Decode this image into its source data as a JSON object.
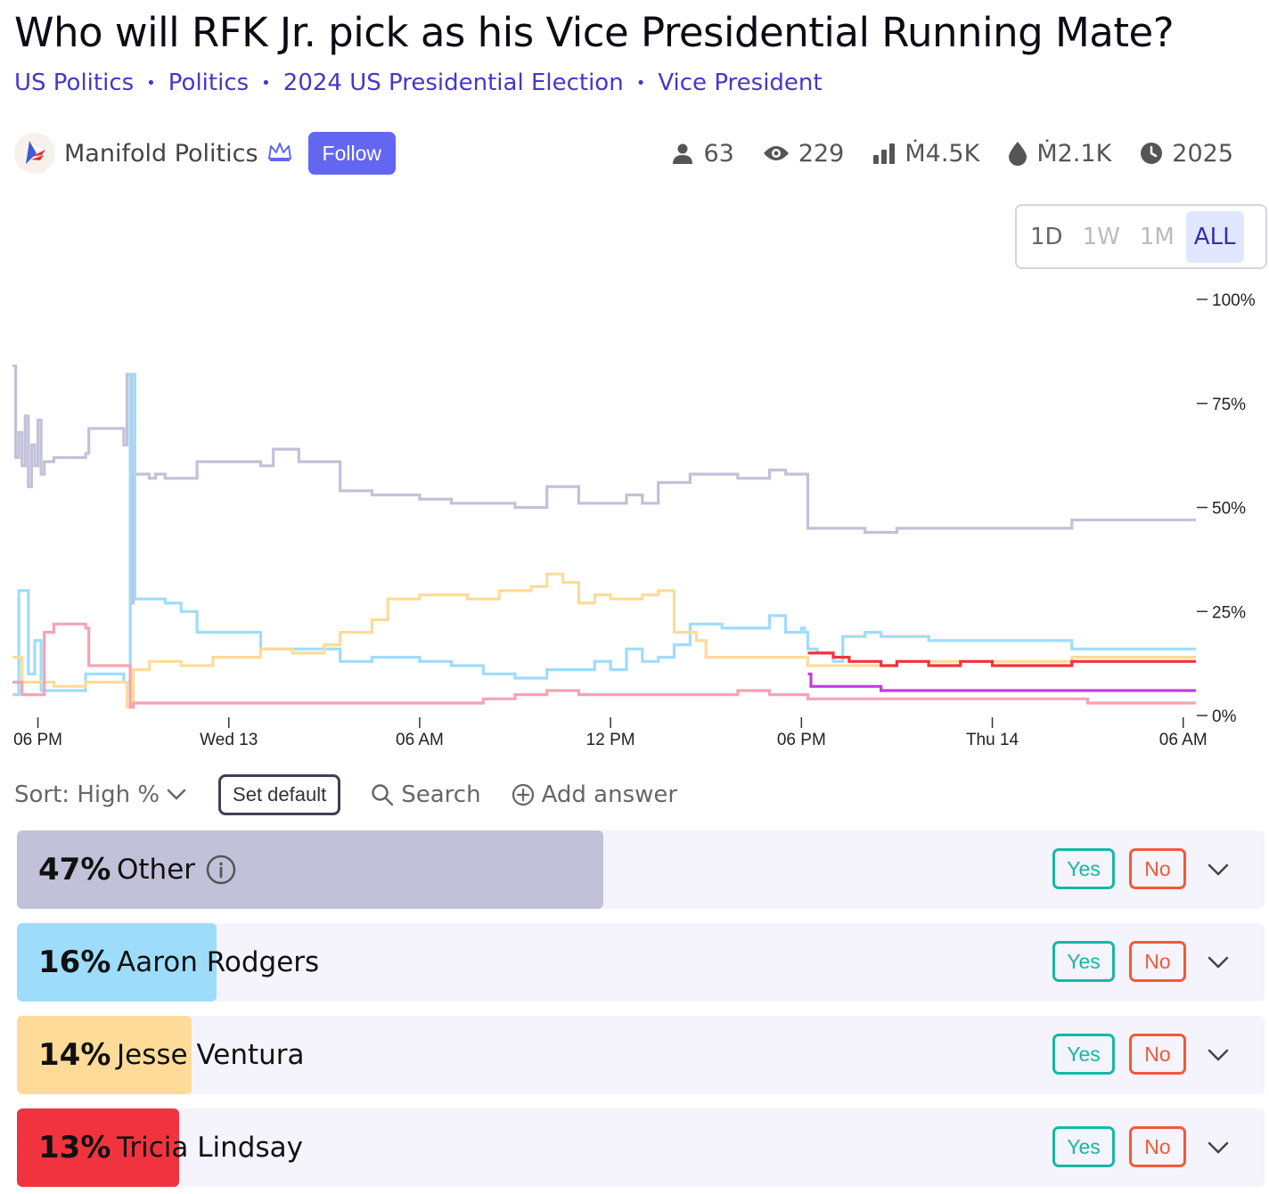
{
  "page": {
    "title": "Who will RFK Jr. pick as his Vice Presidential Running Mate?",
    "breadcrumbs": [
      "US Politics",
      "Politics",
      "2024 US Presidential Election",
      "Vice President"
    ],
    "creator": {
      "name": "Manifold Politics",
      "follow_label": "Follow"
    },
    "stats": {
      "traders": "63",
      "views": "229",
      "volume": "Ṁ4.5K",
      "liquidity": "Ṁ2.1K",
      "close": "2025"
    },
    "range_buttons": [
      "1D",
      "1W",
      "1M",
      "ALL"
    ],
    "active_range": "ALL"
  },
  "toolbar": {
    "sort_label": "Sort: High %",
    "set_default_label": "Set default",
    "search_label": "Search",
    "add_answer_label": "Add answer"
  },
  "answers": [
    {
      "pct": "47%",
      "name": "Other",
      "yes": "Yes",
      "no": "No",
      "value": 0.47,
      "color": "#c3c1d9",
      "info_icon": true
    },
    {
      "pct": "16%",
      "name": "Aaron Rodgers",
      "yes": "Yes",
      "no": "No",
      "value": 0.16,
      "color": "#9edcfb"
    },
    {
      "pct": "14%",
      "name": "Jesse Ventura",
      "yes": "Yes",
      "no": "No",
      "value": 0.14,
      "color": "#fedb99"
    },
    {
      "pct": "13%",
      "name": "Tricia Lindsay",
      "yes": "Yes",
      "no": "No",
      "value": 0.13,
      "color": "#f1333f"
    }
  ],
  "chart_data": {
    "type": "line",
    "step": true,
    "x_tick_labels": [
      "06 PM",
      "Wed 13",
      "06 AM",
      "12 PM",
      "06 PM",
      "Thu 14",
      "06 AM"
    ],
    "x_range_hours": [
      -0.8,
      36.4
    ],
    "y_tick_labels": [
      "100%",
      "75%",
      "50%",
      "25%",
      "0%"
    ],
    "ylim": [
      0,
      100
    ],
    "y_axis_position": "right",
    "grid": false,
    "series": [
      {
        "name": "Other",
        "color": "#c3c1d9",
        "points": [
          [
            -0.8,
            84
          ],
          [
            -0.7,
            62
          ],
          [
            -0.6,
            68
          ],
          [
            -0.5,
            60
          ],
          [
            -0.4,
            72
          ],
          [
            -0.3,
            55
          ],
          [
            -0.2,
            65
          ],
          [
            -0.1,
            60
          ],
          [
            0,
            71
          ],
          [
            0.1,
            58
          ],
          [
            0.2,
            61
          ],
          [
            0.5,
            62
          ],
          [
            1.5,
            63
          ],
          [
            1.6,
            69
          ],
          [
            2.6,
            69
          ],
          [
            2.7,
            65
          ],
          [
            2.8,
            82
          ],
          [
            2.95,
            27
          ],
          [
            3.0,
            58
          ],
          [
            3.5,
            57
          ],
          [
            3.7,
            58
          ],
          [
            4.0,
            57
          ],
          [
            5.0,
            61
          ],
          [
            6.5,
            61
          ],
          [
            7.0,
            60
          ],
          [
            7.4,
            64
          ],
          [
            8.2,
            61
          ],
          [
            9.0,
            61
          ],
          [
            9.5,
            54
          ],
          [
            10.5,
            53
          ],
          [
            12.0,
            52
          ],
          [
            13.0,
            51
          ],
          [
            14.0,
            51
          ],
          [
            15.0,
            50
          ],
          [
            15.7,
            50
          ],
          [
            16.0,
            55
          ],
          [
            16.5,
            55
          ],
          [
            17.0,
            51
          ],
          [
            18.0,
            51
          ],
          [
            18.5,
            53
          ],
          [
            19.0,
            51
          ],
          [
            19.5,
            56
          ],
          [
            20.0,
            56
          ],
          [
            20.5,
            58
          ],
          [
            21.5,
            58
          ],
          [
            22.0,
            57
          ],
          [
            22.5,
            57
          ],
          [
            23.0,
            59
          ],
          [
            23.5,
            58
          ],
          [
            24.1,
            58
          ],
          [
            24.2,
            45
          ],
          [
            24.8,
            45
          ],
          [
            25.5,
            45
          ],
          [
            26.0,
            44
          ],
          [
            27.0,
            45
          ],
          [
            28.0,
            45
          ],
          [
            30.0,
            45
          ],
          [
            31.0,
            45
          ],
          [
            32.0,
            45
          ],
          [
            32.5,
            47
          ],
          [
            34.0,
            47
          ],
          [
            36.4,
            47
          ]
        ]
      },
      {
        "name": "Aaron Rodgers",
        "color": "#9edcfb",
        "points": [
          [
            -0.8,
            5
          ],
          [
            -0.6,
            30
          ],
          [
            -0.3,
            10
          ],
          [
            -0.1,
            18
          ],
          [
            0.1,
            6
          ],
          [
            0.5,
            6
          ],
          [
            1.5,
            10
          ],
          [
            2.5,
            10
          ],
          [
            2.7,
            8
          ],
          [
            2.9,
            82
          ],
          [
            3.05,
            28
          ],
          [
            3.5,
            28
          ],
          [
            4.0,
            27
          ],
          [
            4.5,
            25
          ],
          [
            5.0,
            20
          ],
          [
            6.5,
            20
          ],
          [
            7.0,
            16
          ],
          [
            7.5,
            16
          ],
          [
            8.5,
            16
          ],
          [
            9.5,
            13
          ],
          [
            10.5,
            14
          ],
          [
            12.0,
            13
          ],
          [
            13.0,
            12
          ],
          [
            14.0,
            10
          ],
          [
            15.0,
            9
          ],
          [
            16.0,
            11
          ],
          [
            17.0,
            11
          ],
          [
            17.5,
            13
          ],
          [
            18.0,
            11
          ],
          [
            18.5,
            16
          ],
          [
            19.0,
            13
          ],
          [
            19.5,
            14
          ],
          [
            20.0,
            17
          ],
          [
            20.5,
            22
          ],
          [
            21.5,
            21
          ],
          [
            22.0,
            21
          ],
          [
            23.0,
            24
          ],
          [
            23.5,
            20
          ],
          [
            24.0,
            21
          ],
          [
            24.1,
            20
          ],
          [
            24.2,
            16
          ],
          [
            24.5,
            15
          ],
          [
            25.0,
            13
          ],
          [
            25.3,
            19
          ],
          [
            26.0,
            20
          ],
          [
            26.5,
            19
          ],
          [
            27.0,
            19
          ],
          [
            28.0,
            18
          ],
          [
            30.0,
            18
          ],
          [
            31.0,
            18
          ],
          [
            32.5,
            16
          ],
          [
            34.0,
            16
          ],
          [
            36.4,
            16
          ]
        ]
      },
      {
        "name": "Jesse Ventura",
        "color": "#fedb99",
        "points": [
          [
            -0.8,
            14
          ],
          [
            -0.5,
            8
          ],
          [
            0.0,
            8
          ],
          [
            0.5,
            7
          ],
          [
            1.5,
            8
          ],
          [
            2.5,
            8
          ],
          [
            2.8,
            2
          ],
          [
            3.0,
            11
          ],
          [
            3.5,
            13
          ],
          [
            4.5,
            12
          ],
          [
            5.5,
            14
          ],
          [
            6.5,
            14
          ],
          [
            7.0,
            16
          ],
          [
            8.0,
            15
          ],
          [
            9.0,
            17
          ],
          [
            9.5,
            20
          ],
          [
            10.5,
            23
          ],
          [
            11.0,
            28
          ],
          [
            12.0,
            29
          ],
          [
            13.5,
            28
          ],
          [
            14.5,
            30
          ],
          [
            15.5,
            31
          ],
          [
            16.0,
            34
          ],
          [
            16.5,
            32
          ],
          [
            17.0,
            27
          ],
          [
            17.5,
            29
          ],
          [
            18.0,
            28
          ],
          [
            19.0,
            29
          ],
          [
            19.5,
            30
          ],
          [
            20.0,
            20
          ],
          [
            20.7,
            18
          ],
          [
            21.0,
            14
          ],
          [
            21.7,
            14
          ],
          [
            22.5,
            14
          ],
          [
            23.5,
            14
          ],
          [
            24.2,
            12
          ],
          [
            25.0,
            12
          ],
          [
            26.0,
            12
          ],
          [
            27.0,
            13
          ],
          [
            28.0,
            13
          ],
          [
            30.0,
            13
          ],
          [
            31.0,
            13
          ],
          [
            32.5,
            14
          ],
          [
            34.0,
            14
          ],
          [
            36.4,
            14
          ]
        ]
      },
      {
        "name": "Tricia Lindsay",
        "color": "#f1333f",
        "points": [
          [
            24.2,
            15
          ],
          [
            25.0,
            14
          ],
          [
            25.5,
            13
          ],
          [
            26.0,
            13
          ],
          [
            26.5,
            12
          ],
          [
            27.0,
            13
          ],
          [
            28.0,
            12
          ],
          [
            29.0,
            13
          ],
          [
            30.0,
            12
          ],
          [
            31.0,
            12
          ],
          [
            32.5,
            13
          ],
          [
            34.0,
            13
          ],
          [
            36.4,
            13
          ]
        ]
      },
      {
        "name": "",
        "color": "#c13fd8",
        "points": [
          [
            24.2,
            10
          ],
          [
            24.3,
            7
          ],
          [
            25.0,
            7
          ],
          [
            26.0,
            7
          ],
          [
            26.5,
            6
          ],
          [
            28.0,
            6
          ],
          [
            30.0,
            6
          ],
          [
            32.0,
            6
          ],
          [
            32.5,
            6
          ],
          [
            34.0,
            6
          ],
          [
            36.4,
            6
          ]
        ]
      },
      {
        "name": "",
        "color": "#f5a3b4",
        "points": [
          [
            -0.8,
            8
          ],
          [
            -0.5,
            5
          ],
          [
            0.0,
            5
          ],
          [
            0.2,
            20
          ],
          [
            0.5,
            22
          ],
          [
            1.0,
            22
          ],
          [
            1.5,
            21
          ],
          [
            1.6,
            12
          ],
          [
            2.5,
            12
          ],
          [
            2.9,
            2
          ],
          [
            3.0,
            3
          ],
          [
            5.0,
            3
          ],
          [
            7.0,
            3
          ],
          [
            9.0,
            3
          ],
          [
            10.5,
            3
          ],
          [
            12.0,
            3
          ],
          [
            13.0,
            3
          ],
          [
            14.0,
            4
          ],
          [
            15.0,
            5
          ],
          [
            16.0,
            6
          ],
          [
            16.5,
            6
          ],
          [
            17.0,
            5
          ],
          [
            18.0,
            5
          ],
          [
            19.0,
            5
          ],
          [
            20.0,
            5
          ],
          [
            21.0,
            5
          ],
          [
            22.0,
            6
          ],
          [
            23.0,
            5
          ],
          [
            24.0,
            5
          ],
          [
            24.2,
            4
          ],
          [
            25.0,
            4
          ],
          [
            26.0,
            4
          ],
          [
            28.0,
            4
          ],
          [
            30.0,
            4
          ],
          [
            32.0,
            4
          ],
          [
            33.0,
            3
          ],
          [
            34.0,
            3
          ],
          [
            36.4,
            3
          ]
        ]
      }
    ]
  }
}
